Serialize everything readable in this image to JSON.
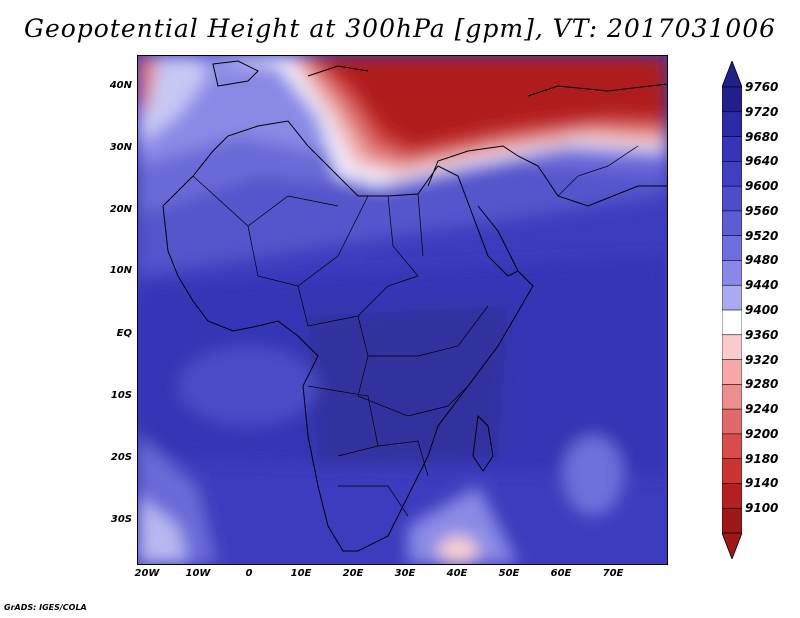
{
  "title": "Geopotential Height at 300hPa [gpm], VT: 2017031006",
  "credit": "GrADS: IGES/COLA",
  "lat_labels": [
    "40N",
    "30N",
    "20N",
    "10N",
    "EQ",
    "10S",
    "20S",
    "30S"
  ],
  "lon_labels": [
    "20W",
    "10W",
    "0",
    "10E",
    "20E",
    "30E",
    "40E",
    "50E",
    "60E",
    "70E"
  ],
  "colorbar": {
    "levels": [
      "9760",
      "9720",
      "9680",
      "9640",
      "9600",
      "9560",
      "9520",
      "9480",
      "9440",
      "9400",
      "9360",
      "9320",
      "9280",
      "9240",
      "9200",
      "9180",
      "9140",
      "9100"
    ],
    "colors": [
      "#20208c",
      "#2b2ba6",
      "#3434b6",
      "#3f3fc2",
      "#4d4dcc",
      "#5c5cd4",
      "#6e6ee0",
      "#8888e8",
      "#aaaaf0",
      "#ffffff",
      "#fccaca",
      "#f4a8a8",
      "#ec8e8e",
      "#e06a6a",
      "#d84c4c",
      "#cc3434",
      "#b42020",
      "#9e1818"
    ]
  }
}
